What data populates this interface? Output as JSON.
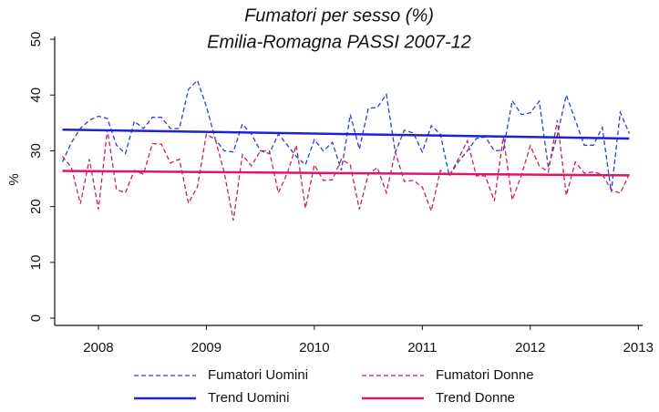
{
  "chart_data": {
    "type": "line",
    "title": "Fumatori per sesso (%)",
    "subtitle": "Emilia-Romagna PASSI 2007-12",
    "y_label": "%",
    "xlim": [
      2007.595,
      2013.04
    ],
    "xticks": [
      2008,
      2009,
      2010,
      2011,
      2012,
      2013
    ],
    "ylim": [
      -1.3,
      50.5
    ],
    "yticks": [
      0,
      10,
      20,
      30,
      40,
      50
    ],
    "grid": false,
    "legend": "bottom",
    "x": [
      2007.667,
      2007.75,
      2007.833,
      2007.917,
      2008.0,
      2008.083,
      2008.167,
      2008.25,
      2008.333,
      2008.417,
      2008.5,
      2008.583,
      2008.667,
      2008.75,
      2008.833,
      2008.917,
      2009.0,
      2009.083,
      2009.167,
      2009.25,
      2009.333,
      2009.417,
      2009.5,
      2009.583,
      2009.667,
      2009.75,
      2009.833,
      2009.917,
      2010.0,
      2010.083,
      2010.167,
      2010.25,
      2010.333,
      2010.417,
      2010.5,
      2010.583,
      2010.667,
      2010.75,
      2010.833,
      2010.917,
      2011.0,
      2011.083,
      2011.167,
      2011.25,
      2011.333,
      2011.417,
      2011.5,
      2011.583,
      2011.667,
      2011.75,
      2011.833,
      2011.917,
      2012.0,
      2012.083,
      2012.167,
      2012.25,
      2012.333,
      2012.417,
      2012.5,
      2012.583,
      2012.667,
      2012.75,
      2012.833,
      2012.917
    ],
    "series": [
      {
        "name": "Fumatori Uomini",
        "color": "#2a3fd8",
        "style": "dashed",
        "values": [
          28,
          31.5,
          34,
          35.5,
          36.2,
          35.8,
          31,
          29.5,
          35.3,
          34,
          36,
          36,
          34,
          34,
          41,
          42.6,
          38,
          32,
          30,
          29.8,
          34.8,
          33,
          30,
          29.5,
          33,
          31,
          29,
          27.5,
          32,
          30,
          31.5,
          26.5,
          36.5,
          30.3,
          37.6,
          37.8,
          40.1,
          29.7,
          33.7,
          33.2,
          29.8,
          34.5,
          33,
          25.5,
          28,
          30,
          32.2,
          32.5,
          30,
          30.1,
          39,
          36.5,
          36.8,
          38.9,
          27,
          32.8,
          40,
          35.5,
          31,
          31,
          34.2,
          22.6,
          36.9,
          33.1
        ]
      },
      {
        "name": "Fumatori Donne",
        "color": "#c2245c",
        "style": "dashed",
        "values": [
          29,
          27,
          20.5,
          28.5,
          19.5,
          33.8,
          23,
          22.5,
          26.5,
          25.8,
          31.3,
          31.2,
          27.8,
          28.5,
          20.6,
          23.5,
          33,
          32,
          26,
          17.5,
          29.3,
          27.3,
          30,
          30,
          22.5,
          26,
          31,
          19.7,
          27.5,
          24.7,
          24.8,
          28.5,
          27.5,
          19.5,
          25.8,
          27,
          22.5,
          29.8,
          24.5,
          24.7,
          23.5,
          19.2,
          26.5,
          25.5,
          28.5,
          31.8,
          25.5,
          25.5,
          21,
          32.5,
          21.2,
          25.6,
          30.9,
          27.3,
          26.2,
          35.5,
          22,
          28,
          26,
          26.2,
          25.8,
          23,
          22.4,
          25.8
        ]
      },
      {
        "name": "Trend Uomini",
        "color": "#1f22d4",
        "style": "solid",
        "x": [
          2007.667,
          2012.917
        ],
        "values": [
          33.8,
          32.2
        ]
      },
      {
        "name": "Trend Donne",
        "color": "#e0146c",
        "style": "solid",
        "x": [
          2007.667,
          2012.917
        ],
        "values": [
          26.4,
          25.6
        ]
      }
    ]
  }
}
